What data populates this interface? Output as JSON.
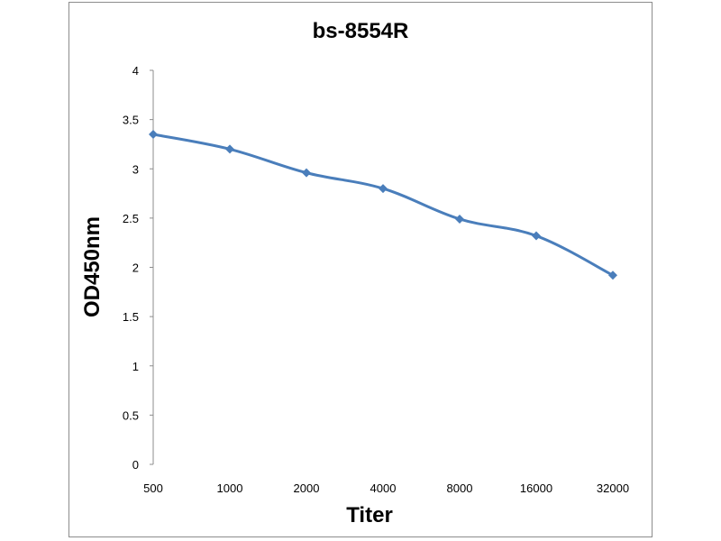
{
  "chart_data": {
    "type": "line",
    "title": "bs-8554R",
    "xlabel": "Titer",
    "ylabel": "OD450nm",
    "categories": [
      "500",
      "1000",
      "2000",
      "4000",
      "8000",
      "16000",
      "32000"
    ],
    "series": [
      {
        "values": [
          3.35,
          3.2,
          2.96,
          2.8,
          2.49,
          2.32,
          1.92
        ],
        "color": "#4a7ebb",
        "marker": "diamond"
      }
    ],
    "ylim": [
      0,
      4
    ],
    "yticks": [
      "0",
      "0.5",
      "1",
      "1.5",
      "2",
      "2.5",
      "3",
      "3.5",
      "4"
    ],
    "grid": false,
    "legend": "none"
  }
}
